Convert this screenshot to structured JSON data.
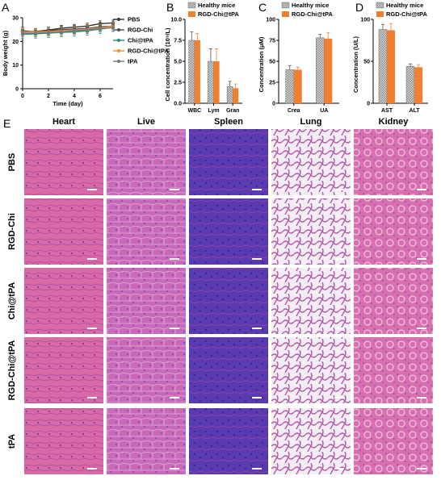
{
  "panel_letters": {
    "a": "A",
    "b": "B",
    "c": "C",
    "d": "D",
    "e": "E"
  },
  "colors": {
    "PBS": "#333333",
    "RGD-Chi": "#4a4a4a",
    "Chi@tPA": "#1f8c84",
    "RGD-Chi@tPA": "#f08c3a",
    "tPA": "#777777",
    "healthy_bar": "#8c8c8c",
    "treated_bar": "#f07f2f",
    "he_pink": "#d86aa8",
    "he_purple": "#6a4ab8",
    "lung_white": "#f4eef4"
  },
  "chart_data": [
    {
      "id": "A",
      "type": "line",
      "xlabel": "Time (day)",
      "ylabel": "Body weight (g)",
      "xlim": [
        0,
        7
      ],
      "ylim": [
        0,
        30
      ],
      "xticks": [
        "0",
        "2",
        "4",
        "6"
      ],
      "yticks": [
        "0",
        "10",
        "20",
        "30"
      ],
      "x": [
        0,
        1,
        2,
        3,
        4,
        5,
        6,
        7
      ],
      "series": [
        {
          "name": "PBS",
          "marker": "circle",
          "values": [
            24.0,
            24.2,
            24.8,
            25.6,
            26.0,
            26.5,
            27.5,
            27.8
          ],
          "err": 1.2
        },
        {
          "name": "RGD-Chi",
          "marker": "square",
          "values": [
            24.5,
            24.0,
            24.5,
            25.0,
            25.2,
            25.5,
            26.2,
            26.5
          ],
          "err": 1.5
        },
        {
          "name": "Chi@tPA",
          "marker": "triangle",
          "values": [
            23.0,
            23.2,
            23.5,
            23.8,
            24.0,
            24.5,
            25.2,
            26.0
          ],
          "err": 1.8
        },
        {
          "name": "RGD-Chi@tPA",
          "marker": "star",
          "values": [
            24.0,
            24.0,
            24.2,
            24.5,
            24.8,
            25.2,
            25.8,
            26.5
          ],
          "err": 1.5
        },
        {
          "name": "tPA",
          "marker": "diamond",
          "values": [
            23.5,
            23.5,
            23.8,
            24.0,
            24.5,
            24.8,
            25.5,
            25.8
          ],
          "err": 1.5
        }
      ]
    },
    {
      "id": "B",
      "type": "bar",
      "ylabel": "Cell concentration (10⁹/L)",
      "ylim": [
        0,
        10
      ],
      "yticks": [
        "0.0",
        "2.5",
        "5.0",
        "7.5",
        "10.0"
      ],
      "categories": [
        "WBC",
        "Lym",
        "Gran"
      ],
      "series": [
        {
          "name": "Healthy mice",
          "values": [
            7.5,
            5.0,
            2.0
          ],
          "err": [
            1.0,
            1.5,
            0.6
          ]
        },
        {
          "name": "RGD-Chi@tPA",
          "values": [
            7.5,
            5.0,
            1.8
          ],
          "err": [
            0.8,
            1.5,
            0.5
          ]
        }
      ]
    },
    {
      "id": "C",
      "type": "bar",
      "ylabel": "Concentration (μM)",
      "ylim": [
        0,
        100
      ],
      "yticks": [
        "0",
        "25",
        "50",
        "75",
        "100"
      ],
      "categories": [
        "Crea",
        "UA"
      ],
      "series": [
        {
          "name": "Healthy mice",
          "values": [
            40,
            78
          ],
          "err": [
            5,
            4
          ]
        },
        {
          "name": "RGD-Chi@tPA",
          "values": [
            40,
            77
          ],
          "err": [
            3,
            7
          ]
        }
      ]
    },
    {
      "id": "D",
      "type": "bar",
      "ylabel": "Concentration (U/L)",
      "ylim": [
        0,
        100
      ],
      "yticks": [
        "0",
        "50",
        "100"
      ],
      "categories": [
        "AST",
        "ALT"
      ],
      "series": [
        {
          "name": "Healthy mice",
          "values": [
            88,
            44
          ],
          "err": [
            6,
            3
          ]
        },
        {
          "name": "RGD-Chi@tPA",
          "values": [
            87,
            43
          ],
          "err": [
            8,
            3
          ]
        }
      ]
    }
  ],
  "histology": {
    "columns": [
      "Heart",
      "Live",
      "Spleen",
      "Lung",
      "Kidney"
    ],
    "rows": [
      "PBS",
      "RGD-Chi",
      "Chi@tPA",
      "RGD-Chi@tPA",
      "tPA"
    ]
  }
}
